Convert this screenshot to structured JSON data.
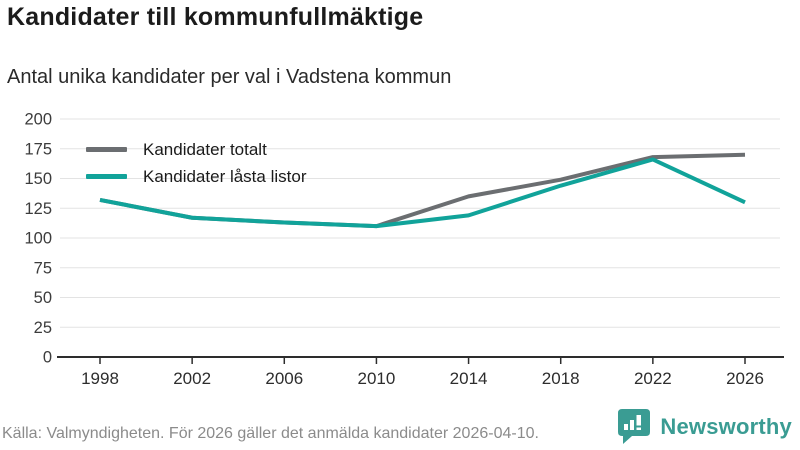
{
  "title": "Kandidater till kommunfullmäktige",
  "subtitle": "Antal unika kandidater per val i Vadstena kommun",
  "footer": {
    "source": "Källa: Valmyndigheten. För 2026 gäller det anmälda kandidater 2026-04-10."
  },
  "branding": {
    "name": "Newsworthy",
    "logo_icon": "bar-chart-speech-bubble-icon",
    "color": "#3a9c93"
  },
  "colors": {
    "series_total": "#6b6e71",
    "series_locked": "#11a39a",
    "grid": "#e3e3e3",
    "axis": "#2d2d2d",
    "tick_text": "#3c3c3c",
    "muted_text": "#8b8b8b"
  },
  "chart_data": {
    "type": "line",
    "title": "Kandidater till kommunfullmäktige",
    "subtitle": "Antal unika kandidater per val i Vadstena kommun",
    "x": [
      1998,
      2002,
      2006,
      2010,
      2014,
      2018,
      2022,
      2026
    ],
    "series": [
      {
        "name": "Kandidater totalt",
        "color": "#6b6e71",
        "values": [
          132,
          117,
          113,
          110,
          135,
          149,
          168,
          170
        ]
      },
      {
        "name": "Kandidater låsta listor",
        "color": "#11a39a",
        "values": [
          132,
          117,
          113,
          110,
          119,
          144,
          166,
          130
        ]
      }
    ],
    "xlabel": "",
    "ylabel": "",
    "ylim": [
      0,
      200
    ],
    "yticks": [
      0,
      25,
      50,
      75,
      100,
      125,
      150,
      175,
      200
    ],
    "grid": "horizontal",
    "legend_position": "top-left-inside"
  }
}
